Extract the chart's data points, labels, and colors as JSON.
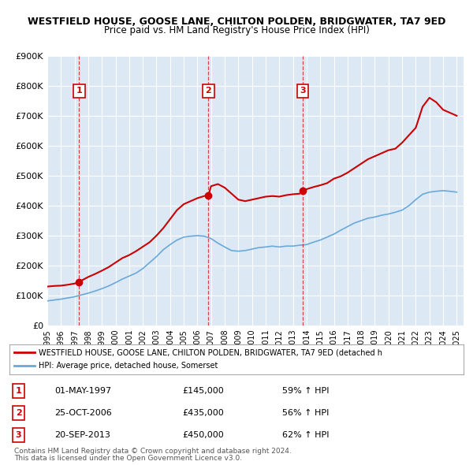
{
  "title": "WESTFIELD HOUSE, GOOSE LANE, CHILTON POLDEN, BRIDGWATER, TA7 9ED",
  "subtitle": "Price paid vs. HM Land Registry's House Price Index (HPI)",
  "bg_color": "#dce9f5",
  "plot_bg_color": "#dce9f5",
  "red_line_label": "WESTFIELD HOUSE, GOOSE LANE, CHILTON POLDEN, BRIDGWATER, TA7 9ED (detached h",
  "blue_line_label": "HPI: Average price, detached house, Somerset",
  "footer1": "Contains HM Land Registry data © Crown copyright and database right 2024.",
  "footer2": "This data is licensed under the Open Government Licence v3.0.",
  "transactions": [
    {
      "num": 1,
      "date": "01-MAY-1997",
      "price": 145000,
      "pct": "59% ↑ HPI",
      "year": 1997.33
    },
    {
      "num": 2,
      "date": "25-OCT-2006",
      "price": 435000,
      "pct": "56% ↑ HPI",
      "year": 2006.81
    },
    {
      "num": 3,
      "date": "20-SEP-2013",
      "price": 450000,
      "pct": "62% ↑ HPI",
      "year": 2013.72
    }
  ],
  "ylim": [
    0,
    900000
  ],
  "xlim": [
    1995.0,
    2025.5
  ],
  "yticks": [
    0,
    100000,
    200000,
    300000,
    400000,
    500000,
    600000,
    700000,
    800000,
    900000
  ],
  "ytick_labels": [
    "£0",
    "£100K",
    "£200K",
    "£300K",
    "£400K",
    "£500K",
    "£600K",
    "£700K",
    "£800K",
    "£900K"
  ],
  "xticks": [
    1995,
    1996,
    1997,
    1998,
    1999,
    2000,
    2001,
    2002,
    2003,
    2004,
    2005,
    2006,
    2007,
    2008,
    2009,
    2010,
    2011,
    2012,
    2013,
    2014,
    2015,
    2016,
    2017,
    2018,
    2019,
    2020,
    2021,
    2022,
    2023,
    2024,
    2025
  ],
  "red_x": [
    1995.0,
    1995.5,
    1996.0,
    1996.5,
    1997.0,
    1997.33,
    1997.5,
    1998.0,
    1998.5,
    1999.0,
    1999.5,
    2000.0,
    2000.5,
    2001.0,
    2001.5,
    2002.0,
    2002.5,
    2003.0,
    2003.5,
    2004.0,
    2004.5,
    2005.0,
    2005.5,
    2006.0,
    2006.5,
    2006.81,
    2007.0,
    2007.5,
    2008.0,
    2008.5,
    2009.0,
    2009.5,
    2010.0,
    2010.5,
    2011.0,
    2011.5,
    2012.0,
    2012.5,
    2013.0,
    2013.5,
    2013.72,
    2014.0,
    2014.5,
    2015.0,
    2015.5,
    2016.0,
    2016.5,
    2017.0,
    2017.5,
    2018.0,
    2018.5,
    2019.0,
    2019.5,
    2020.0,
    2020.5,
    2021.0,
    2021.5,
    2022.0,
    2022.5,
    2023.0,
    2023.5,
    2024.0,
    2024.5,
    2025.0
  ],
  "red_y": [
    130000,
    132000,
    133000,
    136000,
    140000,
    145000,
    150000,
    162000,
    172000,
    183000,
    195000,
    210000,
    225000,
    235000,
    248000,
    263000,
    278000,
    300000,
    325000,
    355000,
    385000,
    405000,
    415000,
    425000,
    432000,
    435000,
    465000,
    472000,
    460000,
    440000,
    420000,
    415000,
    420000,
    425000,
    430000,
    432000,
    430000,
    435000,
    438000,
    440000,
    450000,
    455000,
    462000,
    468000,
    475000,
    490000,
    498000,
    510000,
    525000,
    540000,
    555000,
    565000,
    575000,
    585000,
    590000,
    610000,
    635000,
    660000,
    730000,
    760000,
    745000,
    720000,
    710000,
    700000
  ],
  "blue_x": [
    1995.0,
    1995.5,
    1996.0,
    1996.5,
    1997.0,
    1997.5,
    1998.0,
    1998.5,
    1999.0,
    1999.5,
    2000.0,
    2000.5,
    2001.0,
    2001.5,
    2002.0,
    2002.5,
    2003.0,
    2003.5,
    2004.0,
    2004.5,
    2005.0,
    2005.5,
    2006.0,
    2006.5,
    2007.0,
    2007.5,
    2008.0,
    2008.5,
    2009.0,
    2009.5,
    2010.0,
    2010.5,
    2011.0,
    2011.5,
    2012.0,
    2012.5,
    2013.0,
    2013.5,
    2014.0,
    2014.5,
    2015.0,
    2015.5,
    2016.0,
    2016.5,
    2017.0,
    2017.5,
    2018.0,
    2018.5,
    2019.0,
    2019.5,
    2020.0,
    2020.5,
    2021.0,
    2021.5,
    2022.0,
    2022.5,
    2023.0,
    2023.5,
    2024.0,
    2024.5,
    2025.0
  ],
  "blue_y": [
    82000,
    85000,
    88000,
    92000,
    96000,
    102000,
    108000,
    115000,
    123000,
    132000,
    143000,
    155000,
    165000,
    175000,
    190000,
    210000,
    230000,
    253000,
    270000,
    285000,
    295000,
    298000,
    300000,
    298000,
    290000,
    275000,
    262000,
    250000,
    248000,
    250000,
    255000,
    260000,
    262000,
    265000,
    262000,
    265000,
    265000,
    268000,
    270000,
    278000,
    285000,
    295000,
    305000,
    318000,
    330000,
    342000,
    350000,
    358000,
    362000,
    368000,
    372000,
    378000,
    385000,
    400000,
    420000,
    438000,
    445000,
    448000,
    450000,
    448000,
    445000
  ]
}
